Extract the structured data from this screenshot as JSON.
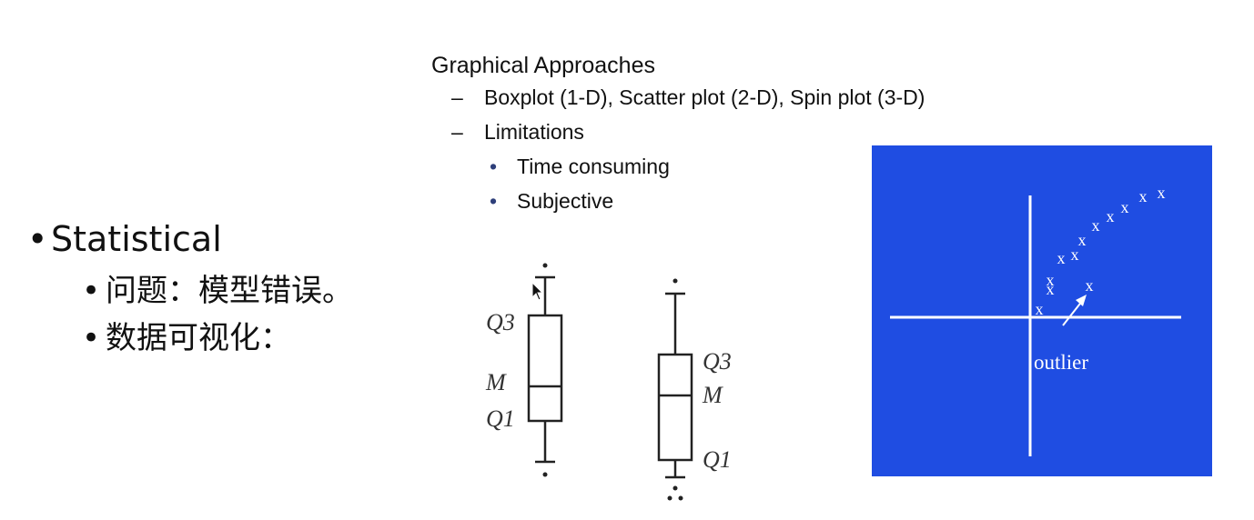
{
  "left": {
    "main_bullet": "Statistical",
    "sub_bullets": [
      "问题：模型错误。",
      "数据可视化："
    ]
  },
  "slide": {
    "heading": "Graphical Approaches",
    "dash_items": [
      "Boxplot (1-D), Scatter plot (2-D), Spin plot (3-D)",
      "Limitations"
    ],
    "dot_items": [
      "Time consuming",
      "Subjective"
    ]
  },
  "boxplots": {
    "left_labels": [
      "Q3",
      "M",
      "Q1"
    ],
    "right_labels": [
      "Q3",
      "M",
      "Q1"
    ]
  },
  "scatter": {
    "marker": "x",
    "annotation": "outlier",
    "background_color": "#1f4de2"
  }
}
